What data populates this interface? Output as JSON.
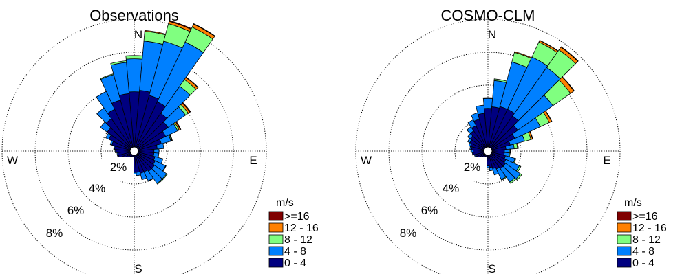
{
  "chart_data": [
    {
      "type": "wind-rose",
      "title": "Observations",
      "directions_deg": [
        0,
        10,
        20,
        30,
        40,
        50,
        60,
        70,
        80,
        90,
        100,
        110,
        120,
        130,
        140,
        150,
        160,
        170,
        180,
        190,
        200,
        210,
        220,
        230,
        240,
        250,
        260,
        270,
        280,
        290,
        300,
        310,
        320,
        330,
        340,
        350
      ],
      "ring_labels": [
        "2%",
        "4%",
        "6%",
        "8%"
      ],
      "cardinals": [
        "N",
        "E",
        "S",
        "W"
      ],
      "legend": {
        "title": "m/s",
        "bins": [
          ">=16",
          "12 - 16",
          "8 - 12",
          "4 - 8",
          "0 - 4"
        ],
        "colors": [
          "#800000",
          "#ff8000",
          "#80ff80",
          "#0080ff",
          "#000080"
        ]
      },
      "series": [
        {
          "name": "0 - 4",
          "values": [
            3.6,
            3.7,
            3.5,
            3.3,
            2.8,
            2.5,
            2.1,
            1.7,
            1.4,
            1.2,
            1.2,
            1.3,
            1.4,
            1.5,
            1.5,
            1.4,
            1.4,
            1.3,
            1.3,
            1.2,
            1.1,
            1.0,
            1.0,
            1.0,
            1.0,
            1.0,
            1.0,
            1.1,
            1.2,
            1.4,
            1.7,
            2.0,
            2.4,
            2.8,
            3.2,
            3.5
          ]
        },
        {
          "name": "4 - 8",
          "values": [
            2.0,
            3.0,
            3.4,
            4.0,
            2.0,
            1.3,
            0.8,
            0.6,
            0.4,
            0.3,
            0.3,
            0.5,
            0.7,
            0.9,
            0.9,
            0.6,
            0.4,
            0.2,
            0.1,
            0.1,
            0.1,
            0.1,
            0.05,
            0.05,
            0.05,
            0.05,
            0.05,
            0.05,
            0.05,
            0.1,
            0.2,
            0.5,
            0.8,
            1.2,
            1.6,
            1.9
          ]
        },
        {
          "name": "8 - 12",
          "values": [
            0.2,
            0.6,
            1.1,
            1.0,
            0.5,
            0.2,
            0.1,
            0.05,
            0,
            0,
            0,
            0,
            0.03,
            0.05,
            0.05,
            0.03,
            0,
            0,
            0,
            0,
            0,
            0,
            0,
            0,
            0,
            0,
            0,
            0,
            0,
            0,
            0,
            0,
            0,
            0,
            0.05,
            0.1
          ]
        },
        {
          "name": "12 - 16",
          "values": [
            0,
            0.05,
            0.15,
            0.2,
            0.15,
            0.12,
            0.08,
            0.03,
            0,
            0,
            0,
            0,
            0,
            0,
            0,
            0,
            0,
            0,
            0,
            0,
            0,
            0,
            0,
            0,
            0,
            0,
            0,
            0,
            0,
            0,
            0,
            0,
            0,
            0,
            0,
            0
          ]
        },
        {
          "name": ">=16",
          "values": [
            0,
            0,
            0.05,
            0.03,
            0.03,
            0.05,
            0.04,
            0.02,
            0,
            0,
            0,
            0,
            0,
            0,
            0,
            0,
            0,
            0,
            0,
            0,
            0,
            0,
            0,
            0,
            0,
            0,
            0,
            0,
            0,
            0,
            0,
            0,
            0,
            0,
            0,
            0
          ]
        }
      ]
    },
    {
      "type": "wind-rose",
      "title": "COSMO-CLM",
      "directions_deg": [
        0,
        10,
        20,
        30,
        40,
        50,
        60,
        70,
        80,
        90,
        100,
        110,
        120,
        130,
        140,
        150,
        160,
        170,
        180,
        190,
        200,
        210,
        220,
        230,
        240,
        250,
        260,
        270,
        280,
        290,
        300,
        310,
        320,
        330,
        340,
        350
      ],
      "ring_labels": [
        "2%",
        "4%",
        "6%",
        "8%"
      ],
      "cardinals": [
        "N",
        "E",
        "S",
        "W"
      ],
      "legend": {
        "title": "m/s",
        "bins": [
          ">=16",
          "12 - 16",
          "8 - 12",
          "4 - 8",
          "0 - 4"
        ],
        "colors": [
          "#800000",
          "#ff8000",
          "#80ff80",
          "#0080ff",
          "#000080"
        ]
      },
      "series": [
        {
          "name": "0 - 4",
          "values": [
            2.6,
            2.7,
            2.8,
            2.8,
            2.6,
            2.2,
            1.8,
            1.4,
            1.1,
            1.0,
            1.0,
            1.1,
            1.2,
            1.3,
            1.3,
            1.2,
            1.1,
            1.0,
            0.9,
            0.8,
            0.8,
            0.8,
            0.8,
            0.8,
            0.8,
            0.8,
            0.9,
            0.9,
            1.0,
            1.1,
            1.2,
            1.3,
            1.5,
            1.7,
            2.0,
            2.3
          ]
        },
        {
          "name": "4 - 8",
          "values": [
            0.6,
            1.6,
            2.8,
            3.5,
            3.6,
            2.6,
            1.7,
            0.9,
            0.5,
            0.3,
            0.3,
            0.6,
            0.9,
            1.1,
            1.0,
            0.7,
            0.4,
            0.2,
            0.1,
            0.05,
            0.05,
            0.05,
            0.05,
            0.05,
            0.05,
            0.05,
            0.05,
            0.1,
            0.1,
            0.1,
            0.15,
            0.2,
            0.3,
            0.4,
            0.4,
            0.5
          ]
        },
        {
          "name": "8 - 12",
          "values": [
            0.05,
            0.1,
            0.6,
            1.0,
            1.3,
            1.3,
            0.6,
            0.4,
            0.2,
            0.05,
            0.05,
            0.05,
            0.1,
            0.1,
            0.1,
            0.05,
            0,
            0,
            0,
            0,
            0,
            0,
            0,
            0,
            0,
            0,
            0,
            0,
            0,
            0,
            0,
            0,
            0,
            0,
            0,
            0
          ]
        },
        {
          "name": "12 - 16",
          "values": [
            0,
            0,
            0.05,
            0.1,
            0.2,
            0.25,
            0.15,
            0.1,
            0.05,
            0.03,
            0,
            0,
            0,
            0,
            0,
            0,
            0,
            0,
            0,
            0,
            0,
            0,
            0,
            0,
            0,
            0,
            0,
            0,
            0,
            0,
            0,
            0,
            0,
            0,
            0,
            0
          ]
        },
        {
          "name": ">=16",
          "values": [
            0,
            0,
            0,
            0.02,
            0.03,
            0.03,
            0.02,
            0.02,
            0,
            0,
            0,
            0,
            0,
            0,
            0,
            0,
            0,
            0,
            0,
            0,
            0,
            0,
            0,
            0,
            0,
            0,
            0,
            0,
            0,
            0,
            0,
            0,
            0,
            0,
            0,
            0
          ]
        }
      ]
    }
  ]
}
